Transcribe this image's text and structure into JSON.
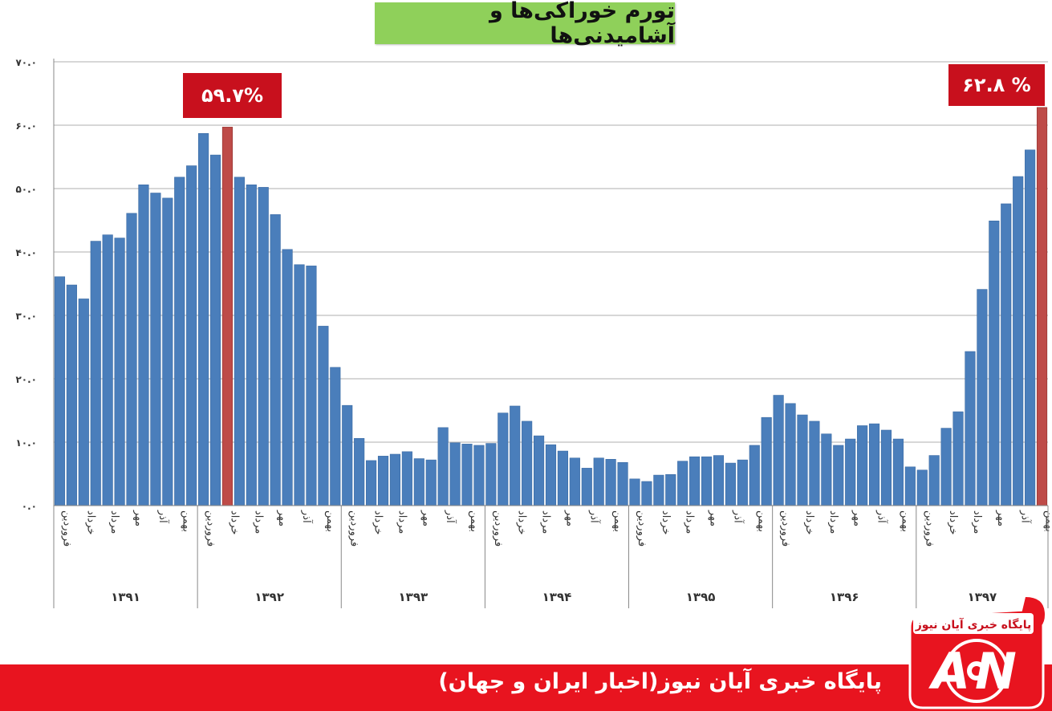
{
  "chart_data": {
    "type": "bar",
    "title": "تورم خوراکی‌ها و آشامیدنی‌ها",
    "ylim": [
      0,
      70
    ],
    "yticks": [
      "۰.۰",
      "۱۰.۰",
      "۲۰.۰",
      "۳۰.۰",
      "۴۰.۰",
      "۵۰.۰",
      "۶۰.۰",
      "۷۰.۰"
    ],
    "grid": true,
    "legend": "none",
    "colors": {
      "bar": "#4a7ebb",
      "highlight": "#be4b48",
      "grid": "#bfbfbf"
    },
    "years": [
      "۱۳۹۱",
      "۱۳۹۲",
      "۱۳۹۳",
      "۱۳۹۴",
      "۱۳۹۵",
      "۱۳۹۶",
      "۱۳۹۷"
    ],
    "month_labels": [
      "فروردین",
      "خرداد",
      "مرداد",
      "مهر",
      "آذر",
      "بهمن"
    ],
    "values": [
      36.1,
      34.8,
      32.6,
      41.7,
      42.7,
      42.2,
      46.1,
      50.6,
      49.3,
      48.5,
      51.8,
      53.6,
      58.7,
      55.3,
      59.7,
      51.8,
      50.6,
      50.2,
      45.9,
      40.4,
      38.0,
      37.8,
      28.3,
      21.8,
      15.8,
      10.6,
      7.1,
      7.8,
      8.1,
      8.5,
      7.4,
      7.2,
      12.3,
      9.9,
      9.7,
      9.5,
      9.8,
      14.6,
      15.7,
      13.3,
      11.0,
      9.6,
      8.6,
      7.5,
      5.9,
      7.5,
      7.3,
      6.8,
      4.2,
      3.8,
      4.8,
      4.9,
      7.0,
      7.7,
      7.7,
      7.9,
      6.7,
      7.2,
      9.5,
      13.9,
      17.4,
      16.1,
      14.3,
      13.3,
      11.3,
      9.5,
      10.5,
      12.6,
      12.9,
      11.9,
      10.5,
      6.1,
      5.6,
      7.9,
      12.2,
      14.8,
      24.3,
      34.1,
      44.9,
      47.6,
      51.9,
      56.1,
      62.8
    ],
    "highlight_indices": [
      14,
      82
    ],
    "annotations": [
      "۵۹.۷%",
      "۶۲.۸ %"
    ]
  },
  "footer": {
    "text": "پایگاه خبری آیان نیوز(اخبار ایران و جهان)",
    "logo_text": "پایگاه خبری آیان نیوز",
    "logo_letters": "AN"
  }
}
